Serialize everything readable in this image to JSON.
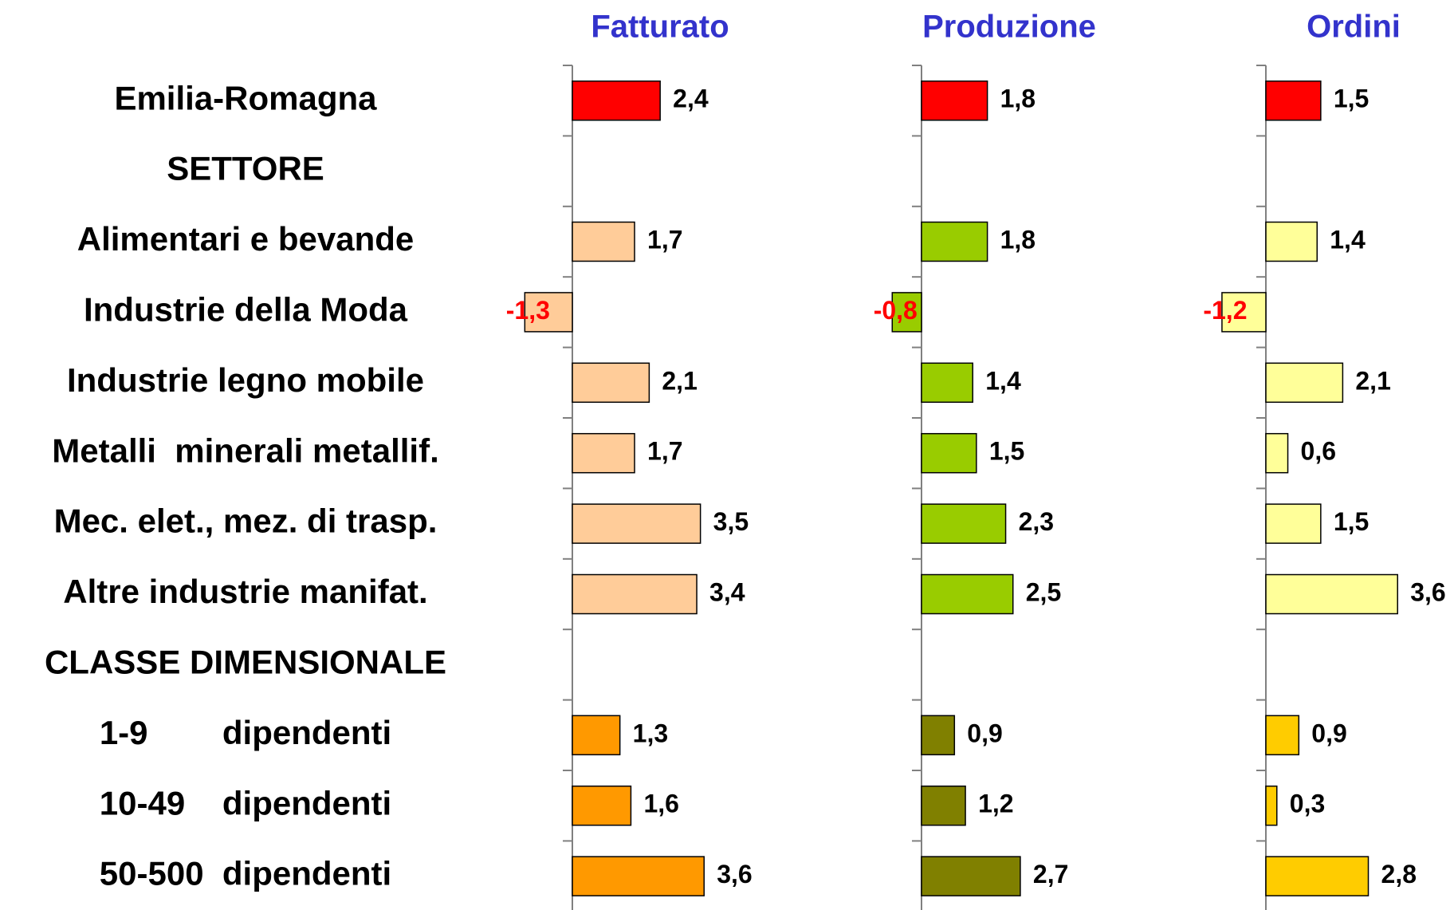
{
  "chart_data": {
    "type": "bar",
    "orientation": "horizontal",
    "categories": [
      "Emilia-Romagna",
      "SETTORE",
      "Alimentari e bevande",
      "Industrie della Moda",
      "Industrie legno mobile",
      "Metalli  minerali metallif.",
      "Mec. elet., mez. di trasp.",
      "Altre industrie manifat.",
      "CLASSE DIMENSIONALE",
      "1-9        dipendenti",
      "10-49    dipendenti",
      "50-500  dipendenti"
    ],
    "xlim": [
      -2,
      4
    ],
    "negative_label_color": "#ff0000",
    "series": [
      {
        "name": "Fatturato",
        "values": [
          2.4,
          null,
          1.7,
          -1.3,
          2.1,
          1.7,
          3.5,
          3.4,
          null,
          1.3,
          1.6,
          3.6
        ],
        "value_labels": [
          "2,4",
          null,
          "1,7",
          "-1,3",
          "2,1",
          "1,7",
          "3,5",
          "3,4",
          null,
          "1,3",
          "1,6",
          "3,6"
        ],
        "colors": [
          "#ff0000",
          null,
          "#ffcc99",
          "#ffcc99",
          "#ffcc99",
          "#ffcc99",
          "#ffcc99",
          "#ffcc99",
          null,
          "#ff9900",
          "#ff9900",
          "#ff9900"
        ]
      },
      {
        "name": "Produzione",
        "values": [
          1.8,
          null,
          1.8,
          -0.8,
          1.4,
          1.5,
          2.3,
          2.5,
          null,
          0.9,
          1.2,
          2.7
        ],
        "value_labels": [
          "1,8",
          null,
          "1,8",
          "-0,8",
          "1,4",
          "1,5",
          "2,3",
          "2,5",
          null,
          "0,9",
          "1,2",
          "2,7"
        ],
        "colors": [
          "#ff0000",
          null,
          "#99cc00",
          "#99cc00",
          "#99cc00",
          "#99cc00",
          "#99cc00",
          "#99cc00",
          null,
          "#808000",
          "#808000",
          "#808000"
        ]
      },
      {
        "name": "Ordini",
        "values": [
          1.5,
          null,
          1.4,
          -1.2,
          2.1,
          0.6,
          1.5,
          3.6,
          null,
          0.9,
          0.3,
          2.8
        ],
        "value_labels": [
          "1,5",
          null,
          "1,4",
          "-1,2",
          "2,1",
          "0,6",
          "1,5",
          "3,6",
          null,
          "0,9",
          "0,3",
          "2,8"
        ],
        "colors": [
          "#ff0000",
          null,
          "#ffff99",
          "#ffff99",
          "#ffff99",
          "#ffff99",
          "#ffff99",
          "#ffff99",
          null,
          "#ffcc00",
          "#ffcc00",
          "#ffcc00"
        ]
      }
    ]
  }
}
